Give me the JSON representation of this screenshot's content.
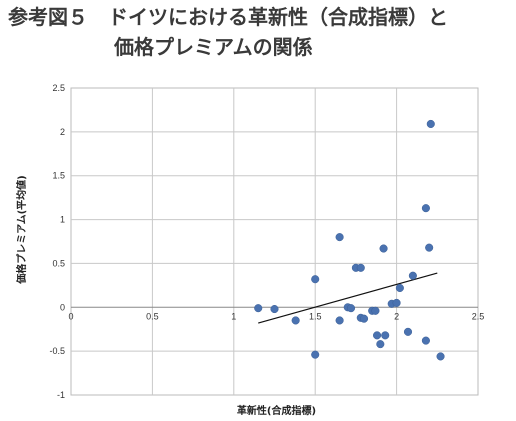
{
  "chart_title": {
    "line1": "参考図５　ドイツにおける革新性（合成指標）と",
    "line2": "価格プレミアムの関係"
  },
  "chart_data": {
    "type": "scatter",
    "title": "参考図５　ドイツにおける革新性（合成指標）と価格プレミアムの関係",
    "xlabel": "革新性(合成指標)",
    "ylabel": "価格プレミアム(平均値)",
    "xlim": [
      0,
      2.5
    ],
    "ylim": [
      -1,
      2.5
    ],
    "x_ticks": [
      "0",
      "0.5",
      "1",
      "1.5",
      "2",
      "2.5"
    ],
    "y_ticks": [
      "2.5",
      "2",
      "1.5",
      "1",
      "0.5",
      "0",
      "-0.5",
      "-1"
    ],
    "grid": true,
    "legend": "none",
    "point_color": "#4a72b0",
    "trendline": {
      "x": [
        1.15,
        2.25
      ],
      "y": [
        -0.18,
        0.39
      ]
    },
    "points": [
      {
        "x": 1.15,
        "y": -0.01
      },
      {
        "x": 1.25,
        "y": -0.02
      },
      {
        "x": 1.38,
        "y": -0.15
      },
      {
        "x": 1.5,
        "y": 0.32
      },
      {
        "x": 1.5,
        "y": -0.54
      },
      {
        "x": 1.65,
        "y": 0.8
      },
      {
        "x": 1.65,
        "y": -0.15
      },
      {
        "x": 1.7,
        "y": 0.0
      },
      {
        "x": 1.72,
        "y": -0.01
      },
      {
        "x": 1.75,
        "y": 0.45
      },
      {
        "x": 1.78,
        "y": 0.45
      },
      {
        "x": 1.78,
        "y": -0.12
      },
      {
        "x": 1.8,
        "y": -0.13
      },
      {
        "x": 1.85,
        "y": -0.04
      },
      {
        "x": 1.87,
        "y": -0.04
      },
      {
        "x": 1.88,
        "y": -0.32
      },
      {
        "x": 1.9,
        "y": -0.42
      },
      {
        "x": 1.92,
        "y": 0.67
      },
      {
        "x": 1.93,
        "y": -0.32
      },
      {
        "x": 1.97,
        "y": 0.04
      },
      {
        "x": 2.0,
        "y": 0.05
      },
      {
        "x": 2.02,
        "y": 0.22
      },
      {
        "x": 2.07,
        "y": -0.28
      },
      {
        "x": 2.1,
        "y": 0.36
      },
      {
        "x": 2.18,
        "y": 1.13
      },
      {
        "x": 2.18,
        "y": -0.38
      },
      {
        "x": 2.2,
        "y": 0.68
      },
      {
        "x": 2.21,
        "y": 2.09
      },
      {
        "x": 2.27,
        "y": -0.56
      }
    ]
  }
}
